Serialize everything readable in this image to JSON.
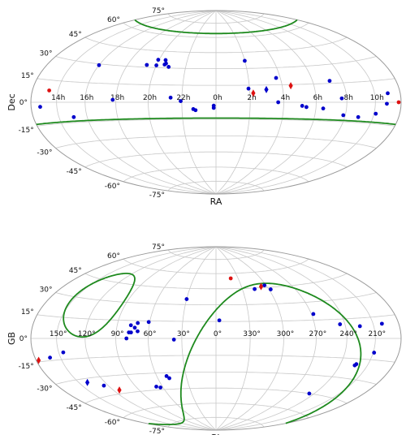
{
  "chart_data": [
    {
      "type": "scatter",
      "projection": "hammer-aitoff",
      "xlabel": "RA",
      "ylabel": "Dec",
      "x_tick_labels": [
        "14h",
        "16h",
        "18h",
        "20h",
        "22h",
        "0h",
        "2h",
        "4h",
        "6h",
        "8h",
        "10h"
      ],
      "y_tick_labels": [
        "-75°",
        "-60°",
        "-45°",
        "-30°",
        "-15°",
        "0°",
        "15°",
        "30°",
        "45°",
        "60°",
        "75°"
      ],
      "grid": true,
      "series": [
        {
          "marker": "circle",
          "color": "#0000cc",
          "points": [
            {
              "x": -169,
              "y": -3
            },
            {
              "x": 165,
              "y": 6
            },
            {
              "x": 163,
              "y": -1
            },
            {
              "x": 152,
              "y": -8
            },
            {
              "x": 134,
              "y": -11
            },
            {
              "x": 118,
              "y": -10
            },
            {
              "x": 115,
              "y": 3
            },
            {
              "x": 107,
              "y": 17
            },
            {
              "x": 97,
              "y": -5
            },
            {
              "x": 81,
              "y": -4
            },
            {
              "x": 77,
              "y": -3
            },
            {
              "x": 56,
              "y": 21
            },
            {
              "x": 55,
              "y": 0
            },
            {
              "x": 29,
              "y": 12
            },
            {
              "x": 30,
              "y": 37
            },
            {
              "x": -31,
              "y": 1
            },
            {
              "x": -40,
              "y": 4
            },
            {
              "x": -51,
              "y": 34
            },
            {
              "x": -47,
              "y": 31
            },
            {
              "x": -53,
              "y": 37
            },
            {
              "x": -52,
              "y": 33
            },
            {
              "x": -61,
              "y": 37
            },
            {
              "x": -60,
              "y": 32
            },
            {
              "x": -70,
              "y": 32
            },
            {
              "x": -93,
              "y": 2
            },
            {
              "x": -120,
              "y": 29
            },
            {
              "x": -134,
              "y": -11
            },
            {
              "x": -2,
              "y": -3
            },
            {
              "x": -2,
              "y": -5
            },
            {
              "x": -20,
              "y": -6
            },
            {
              "x": -18,
              "y": -7
            }
          ]
        },
        {
          "marker": "diamond",
          "color": "#0000cc",
          "points": [
            {
              "x": 45,
              "y": 11
            }
          ]
        },
        {
          "marker": "circle",
          "color": "#dd1111",
          "points": [
            {
              "x": -160,
              "y": 8
            },
            {
              "x": 177,
              "y": 0
            }
          ]
        },
        {
          "marker": "diamond",
          "color": "#dd1111",
          "points": [
            {
              "x": 68,
              "y": 14
            },
            {
              "x": 33,
              "y": 8
            }
          ]
        }
      ],
      "lines": [
        {
          "color": "#1e8a1e",
          "dec": -14,
          "name": ""
        },
        {
          "color": "#1e8a1e",
          "dec": 64,
          "name": ""
        }
      ]
    },
    {
      "type": "scatter",
      "projection": "hammer-aitoff",
      "xlabel": "GL",
      "ylabel": "GB",
      "x_tick_labels": [
        "210°",
        "240°",
        "270°",
        "300°",
        "330°",
        "0°",
        "30°",
        "60°",
        "90°",
        "120°",
        "150°"
      ],
      "y_tick_labels": [
        "-75°",
        "-60°",
        "-45°",
        "-30°",
        "-15°",
        "0°",
        "15°",
        "30°",
        "45°",
        "60°",
        "75°"
      ],
      "grid": true,
      "series": [
        {
          "marker": "circle",
          "color": "#0000cc",
          "points": [
            {
              "x": -160,
              "y": 10
            },
            {
              "x": -135,
              "y": 9
            },
            {
              "x": -115,
              "y": 11
            },
            {
              "x": -92,
              "y": 20
            },
            {
              "x": -58,
              "y": 47
            },
            {
              "x": -62,
              "y": 43
            },
            {
              "x": -44,
              "y": 44
            },
            {
              "x": -3,
              "y": 16
            },
            {
              "x": 30,
              "y": 35
            },
            {
              "x": 37,
              "y": -1
            },
            {
              "x": 61,
              "y": 14
            },
            {
              "x": 71,
              "y": 13
            },
            {
              "x": 73,
              "y": 9
            },
            {
              "x": 77,
              "y": 11
            },
            {
              "x": 70,
              "y": 6
            },
            {
              "x": 76,
              "y": 5
            },
            {
              "x": 78,
              "y": 5
            },
            {
              "x": 80,
              "y": 0
            },
            {
              "x": 145,
              "y": -10
            },
            {
              "x": 162,
              "y": -13
            },
            {
              "x": -151,
              "y": -10
            },
            {
              "x": -137,
              "y": -19
            },
            {
              "x": -136,
              "y": -20
            },
            {
              "x": -114,
              "y": -45
            },
            {
              "x": 48,
              "y": -35
            },
            {
              "x": 50,
              "y": -33
            },
            {
              "x": 63,
              "y": -43
            },
            {
              "x": 67,
              "y": -42
            },
            {
              "x": 125,
              "y": -37
            }
          ]
        },
        {
          "marker": "diamond",
          "color": "#0000cc",
          "points": [
            {
              "x": 140,
              "y": -33
            }
          ]
        },
        {
          "marker": "circle",
          "color": "#dd1111",
          "points": [
            {
              "x": -20,
              "y": 55
            }
          ]
        },
        {
          "marker": "diamond",
          "color": "#dd1111",
          "points": [
            {
              "x": -53,
              "y": 46
            },
            {
              "x": 177,
              "y": -14
            },
            {
              "x": 113,
              "y": -42
            }
          ]
        }
      ],
      "lines": [
        {
          "color": "#1e8a1e",
          "name": ""
        },
        {
          "color": "#1e8a1e",
          "name": ""
        }
      ]
    }
  ]
}
